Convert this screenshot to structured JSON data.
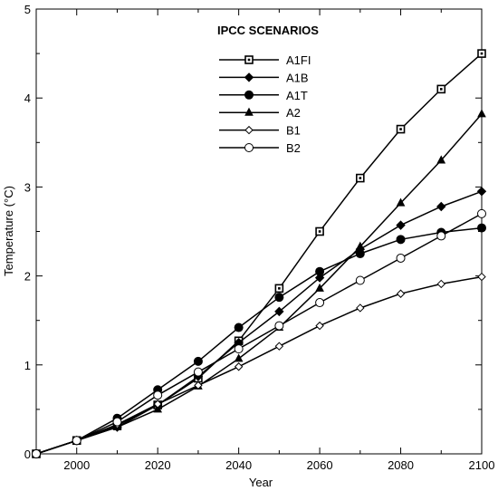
{
  "chart_data": {
    "type": "line",
    "legend_title": "IPCC SCENARIOS",
    "xlabel": "Year",
    "ylabel": "Temperature (°C)",
    "xlim": [
      1990,
      2100
    ],
    "ylim": [
      0,
      5
    ],
    "x_ticks": [
      2000,
      2020,
      2040,
      2060,
      2080,
      2100
    ],
    "y_ticks": [
      0,
      1,
      2,
      3,
      4,
      5
    ],
    "grid": false,
    "legend_position": "top-center",
    "x": [
      1990,
      2000,
      2010,
      2020,
      2030,
      2040,
      2050,
      2060,
      2070,
      2080,
      2090,
      2100
    ],
    "series": [
      {
        "name": "A1FI",
        "marker": "square-dot",
        "values": [
          0,
          0.15,
          0.32,
          0.55,
          0.85,
          1.27,
          1.86,
          2.5,
          3.1,
          3.65,
          4.1,
          4.5
        ]
      },
      {
        "name": "A1B",
        "marker": "diamond-filled",
        "values": [
          0,
          0.15,
          0.3,
          0.55,
          0.87,
          1.25,
          1.6,
          1.98,
          2.3,
          2.57,
          2.78,
          2.95
        ]
      },
      {
        "name": "A1T",
        "marker": "circle-filled",
        "values": [
          0,
          0.15,
          0.4,
          0.72,
          1.04,
          1.42,
          1.76,
          2.05,
          2.25,
          2.41,
          2.49,
          2.54
        ]
      },
      {
        "name": "A2",
        "marker": "triangle-filled",
        "values": [
          0,
          0.15,
          0.3,
          0.5,
          0.76,
          1.07,
          1.42,
          1.86,
          2.33,
          2.82,
          3.3,
          3.82
        ]
      },
      {
        "name": "B1",
        "marker": "diamond-open",
        "values": [
          0,
          0.15,
          0.33,
          0.56,
          0.77,
          0.98,
          1.21,
          1.44,
          1.64,
          1.8,
          1.91,
          1.99
        ]
      },
      {
        "name": "B2",
        "marker": "circle-open",
        "values": [
          0,
          0.15,
          0.36,
          0.66,
          0.92,
          1.18,
          1.44,
          1.7,
          1.95,
          2.2,
          2.45,
          2.7
        ]
      }
    ]
  }
}
